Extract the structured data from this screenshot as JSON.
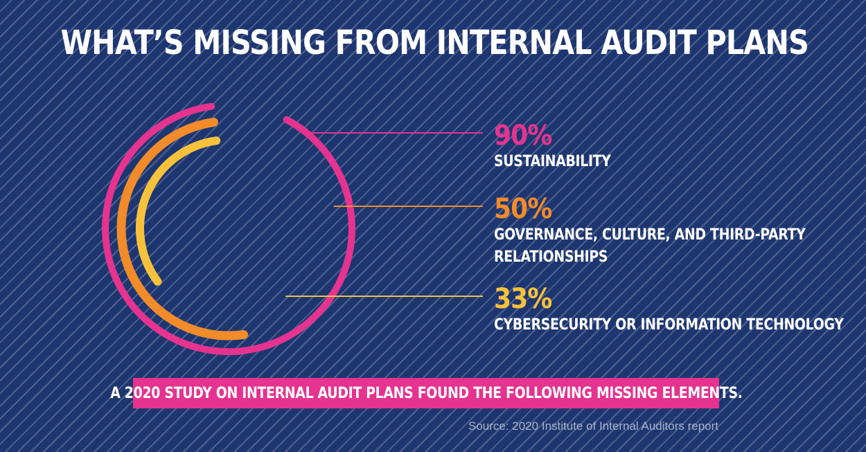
{
  "header": {
    "title": "WHAT’S MISSING FROM INTERNAL AUDIT PLANS"
  },
  "chart_data": {
    "type": "radial-bar",
    "title": "WHAT’S MISSING FROM INTERNAL AUDIT PLANS",
    "unit": "%",
    "categories": [
      "SUSTAINABILITY",
      "GOVERNANCE, CULTURE, AND THIRD-PARTY RELATIONSHIPS",
      "CYBERSECURITY OR INFORMATION TECHNOLOGY"
    ],
    "values": [
      90,
      50,
      33
    ],
    "labels": [
      "90%",
      "50%",
      "33%"
    ],
    "label_lines": [
      [
        "SUSTAINABILITY"
      ],
      [
        "GOVERNANCE, CULTURE, AND THIRD-PARTY",
        "RELATIONSHIPS"
      ],
      [
        "CYBERSECURITY OR INFORMATION TECHNOLOGY"
      ]
    ],
    "colors": [
      "#e5338f",
      "#f28b2a",
      "#f7c23b"
    ],
    "background": "#1e3670"
  },
  "banner": {
    "text": "A 2020 STUDY ON INTERNAL AUDIT PLANS FOUND THE FOLLOWING MISSING ELEMENTS."
  },
  "footer": {
    "source": "Source: 2020 Institute of Internal Auditors report"
  }
}
